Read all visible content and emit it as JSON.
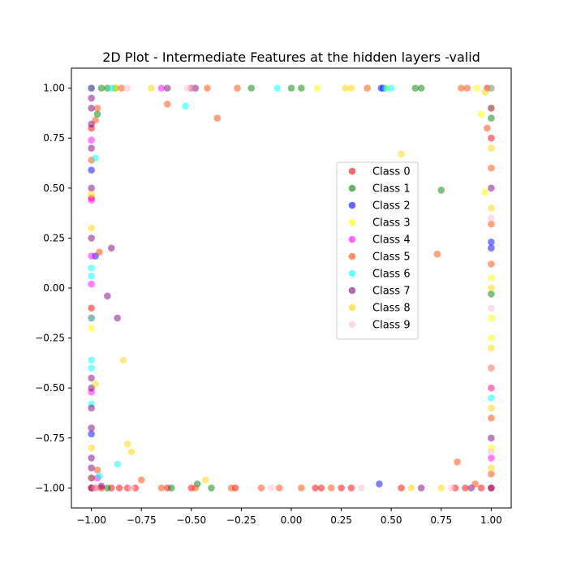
{
  "chart_data": {
    "type": "scatter",
    "title": "2D Plot - Intermediate Features at the hidden layers -valid",
    "xlabel": "",
    "ylabel": "",
    "xlim": [
      -1.1,
      1.1
    ],
    "ylim": [
      -1.1,
      1.1
    ],
    "xticks": [
      -1.0,
      -0.75,
      -0.5,
      -0.25,
      0.0,
      0.25,
      0.5,
      0.75,
      1.0
    ],
    "xtick_labels": [
      "−1.00",
      "−0.75",
      "−0.50",
      "−0.25",
      "0.00",
      "0.25",
      "0.50",
      "0.75",
      "1.00"
    ],
    "yticks": [
      1.0,
      0.75,
      0.5,
      0.25,
      0.0,
      -0.25,
      -0.5,
      -0.75,
      -1.0
    ],
    "ytick_labels": [
      "1.00",
      "0.75",
      "0.50",
      "0.25",
      "0.00",
      "−0.25",
      "−0.50",
      "−0.75",
      "−1.00"
    ],
    "grid": false,
    "legend_position": "center-right",
    "series": [
      {
        "name": "Class 0",
        "color": "#ff0000",
        "points": [
          [
            -1,
            -1
          ],
          [
            -0.98,
            -1
          ],
          [
            -0.95,
            -1
          ],
          [
            -0.9,
            -1
          ],
          [
            -0.86,
            -1
          ],
          [
            -0.82,
            -1
          ],
          [
            -0.78,
            -1
          ],
          [
            -0.62,
            -1
          ],
          [
            -0.5,
            -1
          ],
          [
            -0.28,
            -1
          ],
          [
            0.12,
            -1
          ],
          [
            0.15,
            -1
          ],
          [
            0.25,
            -1
          ],
          [
            0.3,
            -1
          ],
          [
            0.55,
            -1
          ],
          [
            0.82,
            -1
          ],
          [
            0.87,
            -1
          ],
          [
            -1,
            -0.1
          ],
          [
            -1,
            -0.15
          ],
          [
            -1,
            0.8
          ],
          [
            -1,
            0.45
          ],
          [
            0.98,
            1
          ],
          [
            1,
            0.75
          ],
          [
            0.95,
            -1
          ],
          [
            1,
            -1
          ]
        ]
      },
      {
        "name": "Class 1",
        "color": "#008000",
        "points": [
          [
            -0.95,
            1
          ],
          [
            -0.92,
            1
          ],
          [
            -0.88,
            1
          ],
          [
            -0.2,
            1
          ],
          [
            0,
            1
          ],
          [
            0.05,
            1
          ],
          [
            0.62,
            1
          ],
          [
            0.65,
            1
          ],
          [
            0.75,
            0.49
          ],
          [
            -0.47,
            -0.98
          ],
          [
            -0.4,
            -1
          ],
          [
            -0.92,
            -1
          ],
          [
            -0.6,
            -1
          ],
          [
            1,
            0.85
          ],
          [
            1,
            -0.03
          ],
          [
            -0.97,
            0.87
          ],
          [
            1,
            1
          ]
        ]
      },
      {
        "name": "Class 2",
        "color": "#0000ff",
        "points": [
          [
            0.45,
            1
          ],
          [
            0.46,
            1
          ],
          [
            1,
            0.23
          ],
          [
            1,
            0.2
          ],
          [
            0.44,
            -0.98
          ],
          [
            -1,
            -0.73
          ],
          [
            -0.98,
            0.16
          ],
          [
            -1,
            0.59
          ]
        ]
      },
      {
        "name": "Class 3",
        "color": "#ffff00",
        "points": [
          [
            -0.88,
            1
          ],
          [
            0.13,
            1
          ],
          [
            0.48,
            1
          ],
          [
            0.93,
            1
          ],
          [
            1,
            0.9
          ],
          [
            1,
            -0.15
          ],
          [
            1,
            -0.25
          ],
          [
            1,
            -0.5
          ],
          [
            1,
            -0.8
          ],
          [
            -1,
            -0.2
          ],
          [
            0.95,
            0.87
          ],
          [
            0.97,
            0.48
          ],
          [
            1,
            0.05
          ],
          [
            -1,
            -0.95
          ]
        ]
      },
      {
        "name": "Class 4",
        "color": "#ff00ff",
        "points": [
          [
            -1,
            0.16
          ],
          [
            -1,
            0.44
          ],
          [
            -1,
            0.74
          ],
          [
            -1,
            0.02
          ],
          [
            -0.65,
            1
          ],
          [
            -0.97,
            -0.95
          ],
          [
            1,
            -0.85
          ],
          [
            1,
            -0.5
          ],
          [
            -1,
            -0.52
          ]
        ]
      },
      {
        "name": "Class 5",
        "color": "#ff4500",
        "points": [
          [
            -0.97,
            0.9
          ],
          [
            -0.98,
            0.84
          ],
          [
            -0.96,
            0.18
          ],
          [
            -0.62,
            0.92
          ],
          [
            -0.37,
            0.85
          ],
          [
            -0.75,
            -0.96
          ],
          [
            -0.65,
            -1
          ],
          [
            -0.48,
            -1
          ],
          [
            -0.3,
            -1
          ],
          [
            -0.15,
            -1
          ],
          [
            -0.06,
            -1
          ],
          [
            0.05,
            -1
          ],
          [
            0.2,
            -1
          ],
          [
            0.73,
            0.17
          ],
          [
            0.83,
            -0.87
          ],
          [
            0.98,
            0.8
          ],
          [
            1,
            0.6
          ],
          [
            1,
            0.32
          ],
          [
            1,
            0.12
          ],
          [
            1,
            -0.4
          ],
          [
            1,
            -0.65
          ],
          [
            1,
            -0.93
          ],
          [
            -0.85,
            1
          ],
          [
            -0.42,
            1
          ],
          [
            -0.27,
            1
          ],
          [
            0.38,
            1
          ],
          [
            0.88,
            1
          ],
          [
            0.85,
            1
          ],
          [
            -0.97,
            -0.91
          ],
          [
            0.92,
            -0.98
          ],
          [
            -1,
            0.64
          ]
        ]
      },
      {
        "name": "Class 6",
        "color": "#00ffff",
        "points": [
          [
            -1,
            -0.36
          ],
          [
            -1,
            -0.4
          ],
          [
            -1,
            -0.15
          ],
          [
            -1,
            0.1
          ],
          [
            -1,
            0.06
          ],
          [
            -0.98,
            0.65
          ],
          [
            -0.96,
            -0.94
          ],
          [
            -0.87,
            -0.88
          ],
          [
            -0.53,
            0.91
          ],
          [
            -0.07,
            1
          ],
          [
            0.47,
            1
          ],
          [
            0.5,
            1
          ],
          [
            1,
            -0.55
          ],
          [
            -1,
            -0.58
          ],
          [
            -1,
            1
          ],
          [
            -0.9,
            1
          ]
        ]
      },
      {
        "name": "Class 7",
        "color": "#800080",
        "points": [
          [
            -1,
            1
          ],
          [
            -1,
            0.95
          ],
          [
            -1,
            0.9
          ],
          [
            -1,
            0.82
          ],
          [
            -1,
            0.7
          ],
          [
            -1,
            0.5
          ],
          [
            -1,
            0.25
          ],
          [
            -1,
            -0.45
          ],
          [
            -1,
            -0.5
          ],
          [
            -1,
            -0.6
          ],
          [
            -1,
            -0.7
          ],
          [
            -1,
            -0.85
          ],
          [
            -1,
            -0.9
          ],
          [
            -1,
            -0.95
          ],
          [
            -1,
            -1
          ],
          [
            -0.95,
            -0.99
          ],
          [
            -0.9,
            0.2
          ],
          [
            -0.92,
            -0.04
          ],
          [
            -0.87,
            -0.15
          ],
          [
            -0.5,
            1
          ],
          [
            -0.48,
            1
          ],
          [
            0.65,
            -1
          ],
          [
            0.9,
            -1
          ],
          [
            1,
            0.9
          ],
          [
            1,
            0.5
          ],
          [
            1,
            -0.75
          ],
          [
            1,
            -1
          ],
          [
            -0.62,
            1
          ]
        ]
      },
      {
        "name": "Class 8",
        "color": "#ffd700",
        "points": [
          [
            -0.7,
            1
          ],
          [
            0.27,
            1
          ],
          [
            0.3,
            1
          ],
          [
            0.55,
            0.67
          ],
          [
            -0.82,
            -0.78
          ],
          [
            -0.8,
            -0.82
          ],
          [
            -0.84,
            -0.36
          ],
          [
            -0.43,
            -0.96
          ],
          [
            -0.98,
            -0.48
          ],
          [
            -1,
            0.47
          ],
          [
            -1,
            0.3
          ],
          [
            1,
            0.7
          ],
          [
            1,
            0.4
          ],
          [
            1,
            0
          ],
          [
            1,
            -0.3
          ],
          [
            1,
            -0.6
          ],
          [
            1,
            -0.9
          ],
          [
            0.75,
            -1
          ],
          [
            0.6,
            -1
          ],
          [
            -1,
            -0.8
          ],
          [
            0.97,
            0.98
          ]
        ]
      },
      {
        "name": "Class 9",
        "color": "#ffc0cb",
        "points": [
          [
            -0.82,
            1
          ],
          [
            -0.52,
            1
          ],
          [
            -0.5,
            1
          ],
          [
            -0.98,
            -1
          ],
          [
            -0.8,
            -1
          ],
          [
            0.35,
            -1
          ],
          [
            0.8,
            -1
          ],
          [
            1,
            0.35
          ],
          [
            1,
            -0.1
          ],
          [
            1,
            -0.4
          ],
          [
            1,
            -0.82
          ],
          [
            -0.1,
            -1
          ],
          [
            1,
            1
          ]
        ]
      }
    ]
  }
}
